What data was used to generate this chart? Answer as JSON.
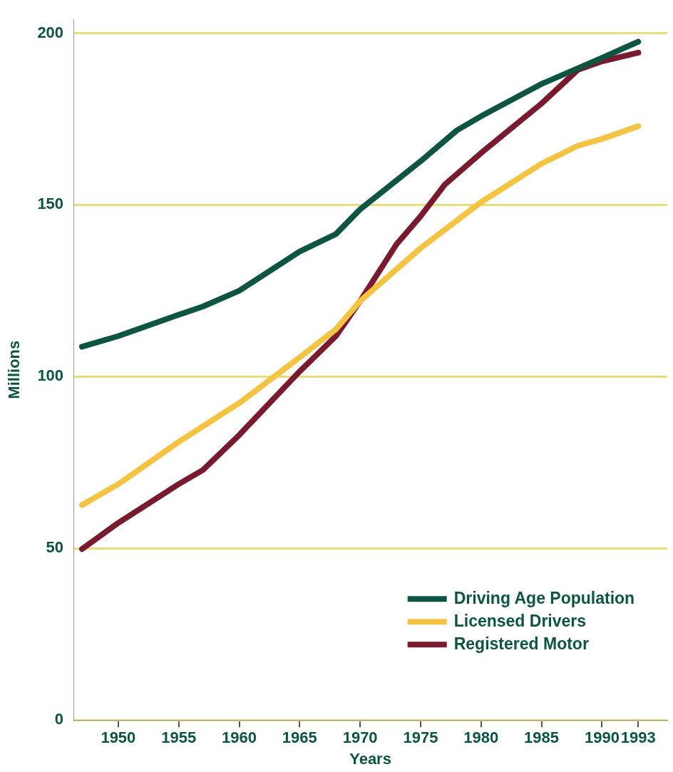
{
  "chart_data": {
    "type": "line",
    "xlabel": "Years",
    "ylabel": "Millions",
    "xlim": [
      1946.3,
      1995.4
    ],
    "xticks": [
      1950,
      1955,
      1960,
      1965,
      1970,
      1975,
      1980,
      1985,
      1990,
      1993
    ],
    "ylim": [
      0,
      204
    ],
    "yticks": [
      0,
      50,
      100,
      150,
      200
    ],
    "grid": "y",
    "legend": "bottom right",
    "marker": "none",
    "line_style": "solid",
    "series": [
      {
        "name": "Driving Age Population",
        "color": "#0e5443",
        "x": [
          1947,
          1950,
          1955,
          1957,
          1960,
          1965,
          1968,
          1970,
          1975,
          1978,
          1980,
          1985,
          1990,
          1993
        ],
        "values": [
          108.7,
          111.8,
          118,
          120.4,
          125,
          136.4,
          141.5,
          148.7,
          162.7,
          171.7,
          175.8,
          185.2,
          192.8,
          197.5
        ]
      },
      {
        "name": "Licensed Drivers",
        "color": "#f5c342",
        "x": [
          1947,
          1950,
          1955,
          1960,
          1965,
          1968,
          1970,
          1975,
          1980,
          1985,
          1988,
          1990,
          1993
        ],
        "values": [
          62.6,
          68.7,
          81,
          92.3,
          105.6,
          113.8,
          122,
          137.4,
          150.8,
          162,
          167.2,
          169.2,
          172.9
        ]
      },
      {
        "name": "Registered Motor",
        "color": "#7a1a2e",
        "x": [
          1947,
          1950,
          1955,
          1957,
          1960,
          1965,
          1968,
          1970,
          1973,
          1975,
          1977,
          1980,
          1985,
          1988,
          1990,
          1993
        ],
        "values": [
          49.8,
          57.4,
          68.7,
          72.8,
          83,
          101.5,
          111.8,
          122,
          138.5,
          146.7,
          155.9,
          165.1,
          179.5,
          189.3,
          191.8,
          194.3
        ]
      }
    ]
  }
}
